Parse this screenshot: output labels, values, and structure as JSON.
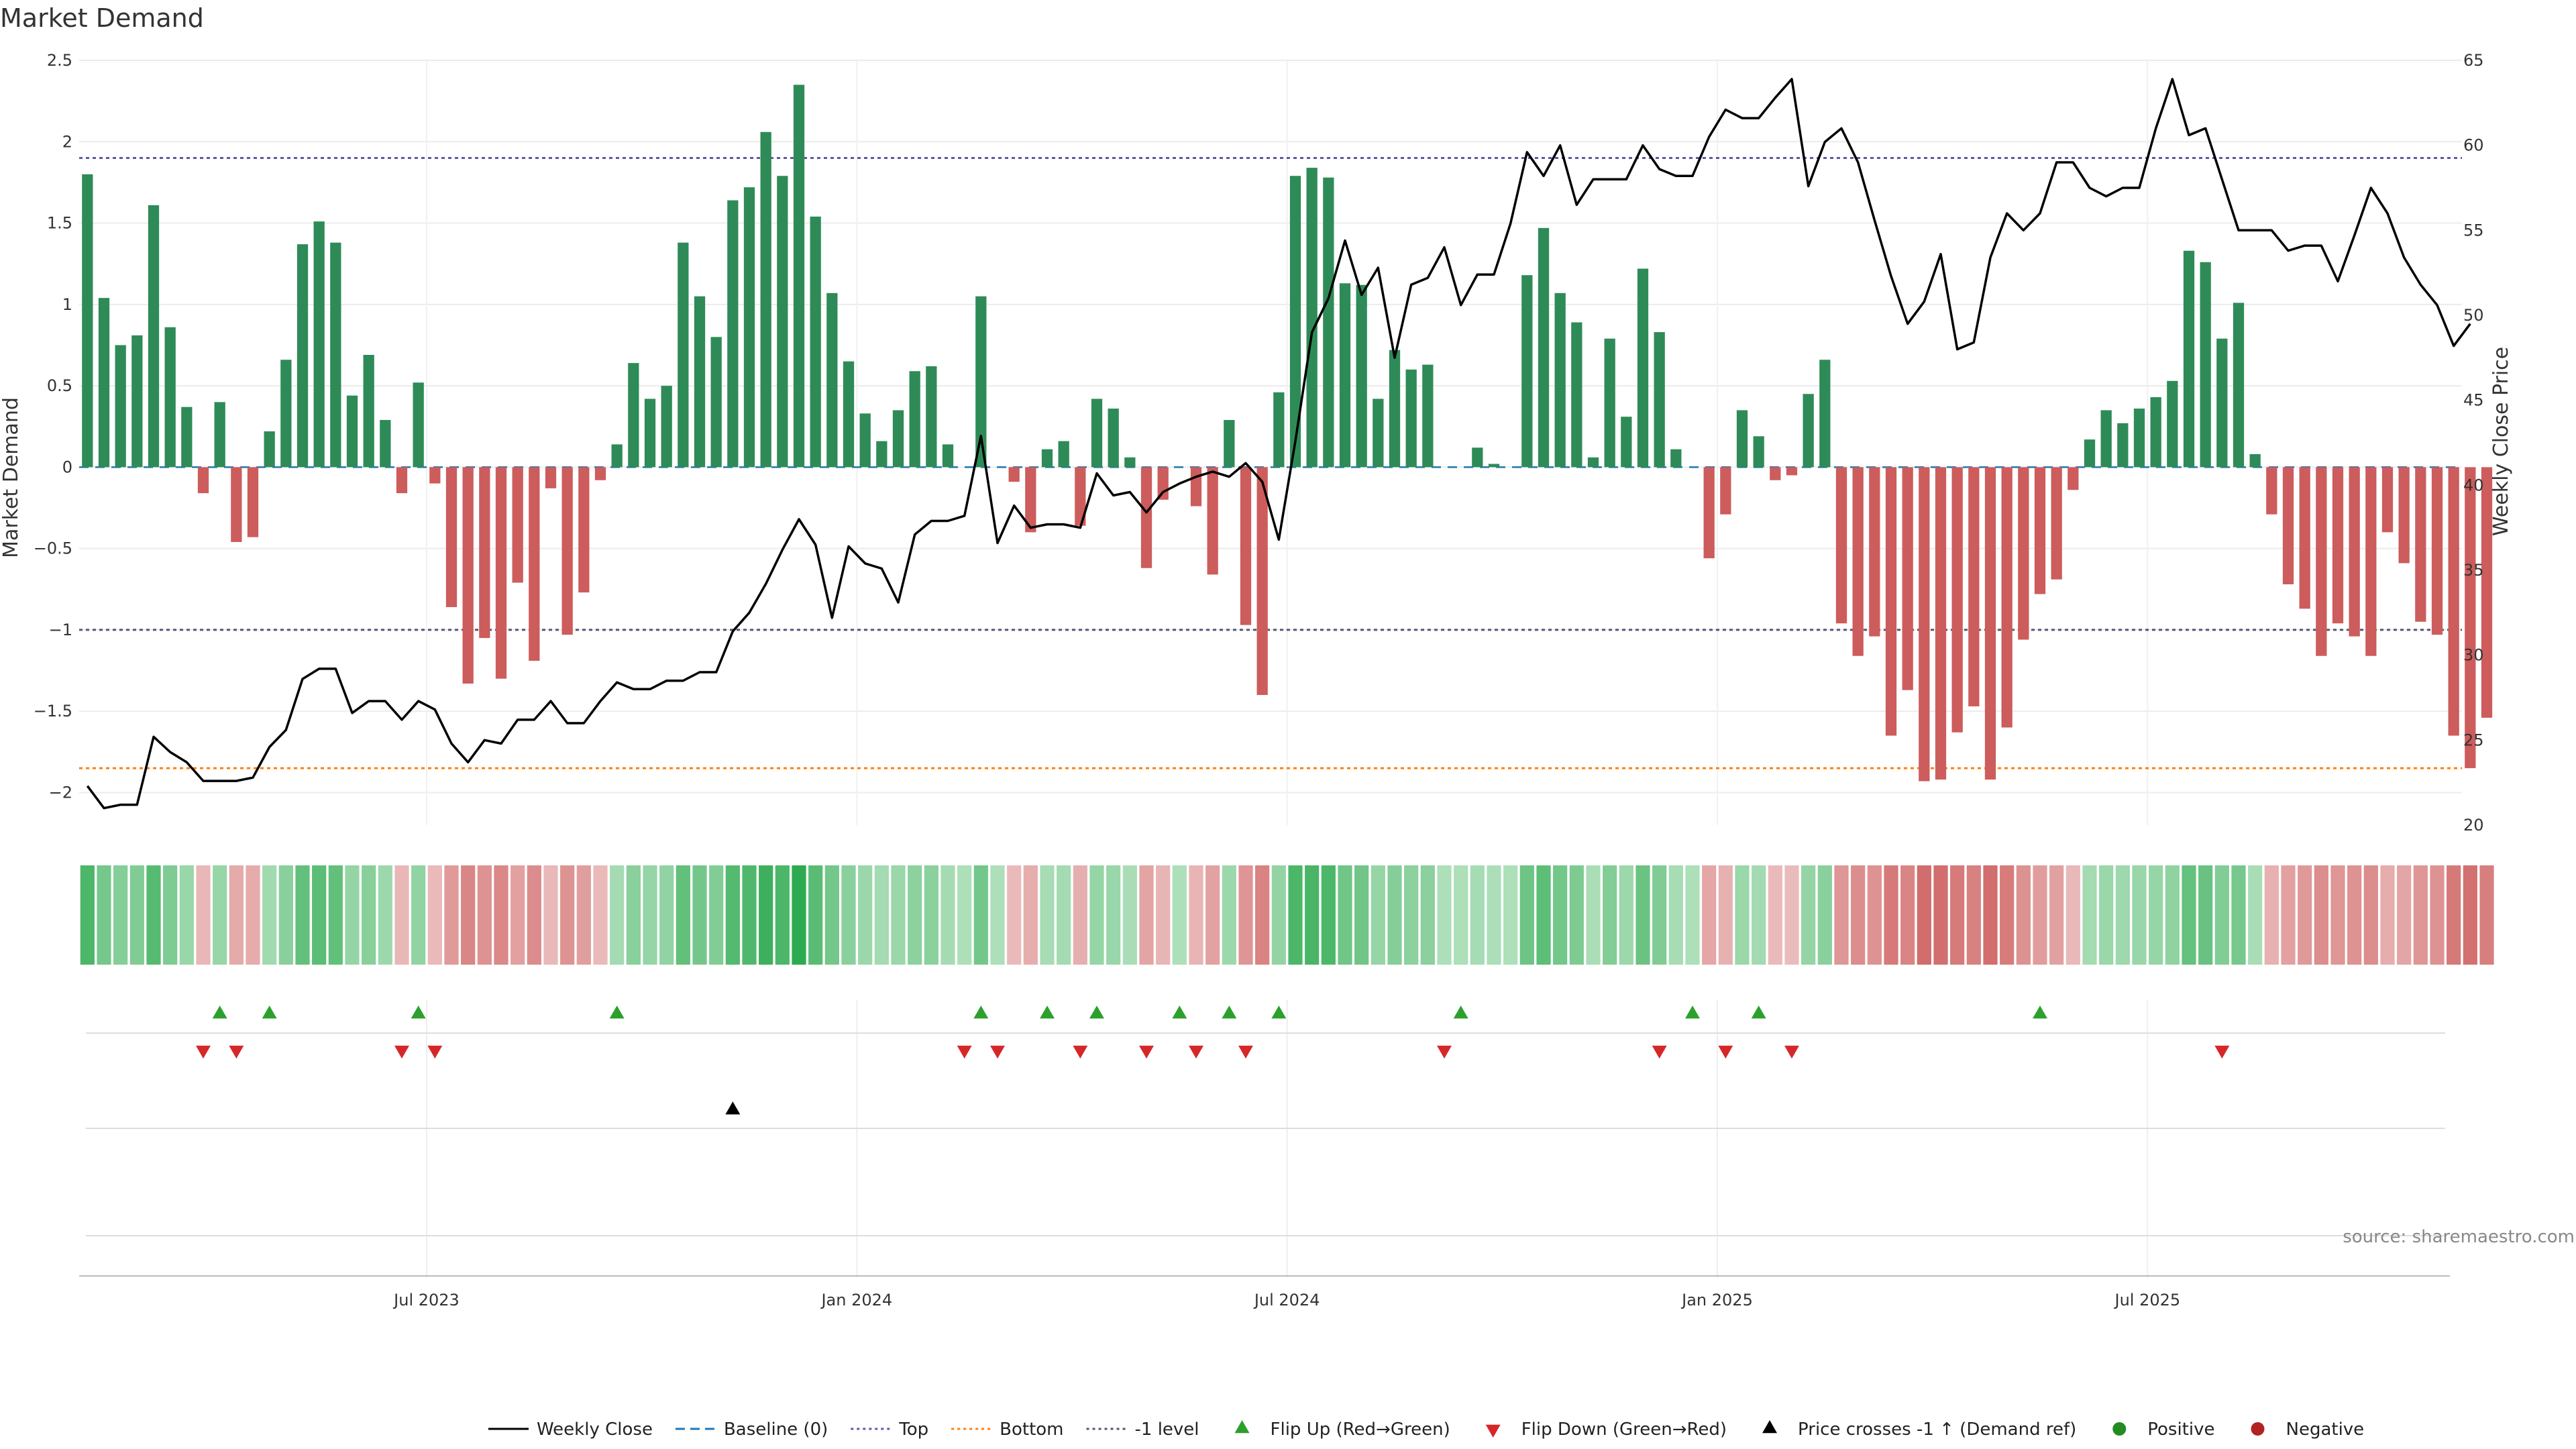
{
  "chart_data": {
    "type": "bar",
    "title": "Market Demand",
    "ylabel": "Market Demand",
    "y2label": "Weekly Close Price",
    "ylim": [
      -2.2,
      2.5
    ],
    "y2lim": [
      20,
      65
    ],
    "yticks": [
      -2,
      -1.5,
      -1,
      -0.5,
      0,
      0.5,
      1,
      1.5,
      2,
      2.5
    ],
    "ytick_labels": [
      "−2",
      "−1.5",
      "−1",
      "−0.5",
      "0",
      "0.5",
      "1",
      "1.5",
      "2",
      "2.5"
    ],
    "y2ticks": [
      20,
      25,
      30,
      35,
      40,
      45,
      50,
      55,
      60,
      65
    ],
    "xticks": [
      {
        "label": "Jul 2023",
        "index": 21
      },
      {
        "label": "Jan 2024",
        "index": 47
      },
      {
        "label": "Jul 2024",
        "index": 73
      },
      {
        "label": "Jan 2025",
        "index": 99
      },
      {
        "label": "Jul 2025",
        "index": 125
      }
    ],
    "weeks": 144,
    "demand": [
      1.8,
      1.04,
      0.75,
      0.81,
      1.61,
      0.86,
      0.37,
      -0.16,
      0.4,
      -0.46,
      -0.43,
      0.22,
      0.66,
      1.37,
      1.51,
      1.38,
      0.44,
      0.69,
      0.29,
      -0.16,
      0.52,
      -0.1,
      -0.86,
      -1.33,
      -1.05,
      -1.3,
      -0.71,
      -1.19,
      -0.13,
      -1.03,
      -0.77,
      -0.08,
      0.14,
      0.64,
      0.42,
      0.5,
      1.38,
      1.05,
      0.8,
      1.64,
      1.72,
      2.06,
      1.79,
      2.35,
      1.54,
      1.07,
      0.65,
      0.33,
      0.16,
      0.35,
      0.59,
      0.62,
      0.14,
      0.0,
      1.05,
      0.0,
      -0.09,
      -0.4,
      0.11,
      0.16,
      -0.36,
      0.42,
      0.36,
      0.06,
      -0.62,
      -0.2,
      0.0,
      -0.24,
      -0.66,
      0.29,
      -0.97,
      -1.4,
      0.46,
      1.79,
      1.84,
      1.78,
      1.13,
      1.12,
      0.42,
      0.72,
      0.6,
      0.63,
      0.0,
      0.0,
      0.12,
      0.02,
      0.0,
      1.18,
      1.47,
      1.07,
      0.89,
      0.06,
      0.79,
      0.31,
      1.22,
      0.83,
      0.11,
      0.0,
      -0.56,
      -0.29,
      0.35,
      0.19,
      -0.08,
      -0.05,
      0.45,
      0.66,
      -0.96,
      -1.16,
      -1.04,
      -1.65,
      -1.37,
      -1.93,
      -1.92,
      -1.63,
      -1.47,
      -1.92,
      -1.6,
      -1.06,
      -0.78,
      -0.69,
      -0.14,
      0.17,
      0.35,
      0.27,
      0.36,
      0.43,
      0.53,
      1.33,
      1.26,
      0.79,
      1.01,
      0.08,
      -0.29,
      -0.72,
      -0.87,
      -1.16,
      -0.96,
      -1.04,
      -1.16,
      -0.4,
      -0.59,
      -0.95,
      -1.03,
      -1.65,
      -1.85,
      -1.54
    ],
    "close": [
      22.3,
      21.0,
      21.2,
      21.2,
      25.2,
      24.3,
      23.7,
      22.6,
      22.6,
      22.6,
      22.8,
      24.6,
      25.6,
      28.6,
      29.2,
      29.2,
      26.6,
      27.3,
      27.3,
      26.2,
      27.3,
      26.8,
      24.8,
      23.7,
      25.0,
      24.8,
      26.2,
      26.2,
      27.3,
      26.0,
      26.0,
      27.3,
      28.4,
      28.0,
      28.0,
      28.5,
      28.5,
      29.0,
      29.0,
      31.4,
      32.5,
      34.2,
      36.2,
      38.0,
      36.5,
      32.2,
      36.4,
      35.4,
      35.1,
      33.1,
      37.1,
      37.9,
      37.9,
      38.2,
      42.9,
      36.6,
      38.8,
      37.5,
      37.7,
      37.7,
      37.5,
      40.7,
      39.4,
      39.6,
      38.4,
      39.6,
      40.1,
      40.5,
      40.8,
      40.5,
      41.3,
      40.2,
      36.8,
      42.6,
      49.0,
      51.0,
      54.4,
      51.2,
      52.8,
      47.5,
      51.8,
      52.2,
      54.0,
      50.6,
      52.4,
      52.4,
      55.4,
      59.6,
      58.2,
      60.0,
      56.5,
      58.0,
      58.0,
      58.0,
      60.0,
      58.6,
      58.2,
      58.2,
      60.5,
      62.1,
      61.6,
      61.6,
      62.8,
      63.9,
      57.6,
      60.2,
      61.0,
      59.0,
      55.6,
      52.3,
      49.5,
      50.8,
      53.6,
      48.0,
      48.4,
      53.4,
      56.0,
      55.0,
      56.0,
      59.0,
      59.0,
      57.5,
      57.0,
      57.5,
      57.5,
      61.0,
      63.9,
      60.6,
      61.0,
      58.0,
      55.0,
      55.0,
      55.0,
      53.8,
      54.1,
      54.1,
      52.0,
      54.7,
      57.5,
      56.0,
      53.4,
      51.8,
      50.6,
      48.2,
      49.5
    ],
    "baseline": 0,
    "top_level": 1.9,
    "bottom_level": -1.85,
    "minus_one_level": -1,
    "flip_up_weeks": [
      8,
      11,
      20,
      32,
      54,
      58,
      61,
      66,
      69,
      72,
      83,
      97,
      101,
      118
    ],
    "flip_down_weeks": [
      7,
      9,
      19,
      21,
      53,
      55,
      60,
      64,
      67,
      70,
      82,
      95,
      99,
      103,
      129
    ],
    "cross_up_weeks": [
      39
    ],
    "colors": {
      "positive": "#2e8b57",
      "negative": "#cd5c5c",
      "close": "#000000",
      "baseline": "#1f77b4",
      "top": "#5a5aa8",
      "bottom": "#ff7f0e",
      "minus_one": "#555577",
      "flip_up": "#2ca02c",
      "flip_down": "#d62728",
      "cross": "#000000",
      "pos_dot": "#228b22",
      "neg_dot": "#b22222"
    },
    "legend": [
      {
        "label": "Weekly Close",
        "kind": "line"
      },
      {
        "label": "Baseline (0)",
        "kind": "dash"
      },
      {
        "label": "Top",
        "kind": "dot"
      },
      {
        "label": "Bottom",
        "kind": "dot"
      },
      {
        "label": "-1 level",
        "kind": "dot"
      },
      {
        "label": "Flip Up (Red→Green)",
        "kind": "up"
      },
      {
        "label": "Flip Down (Green→Red)",
        "kind": "down"
      },
      {
        "label": "Price crosses -1 ↑ (Demand ref)",
        "kind": "cross"
      },
      {
        "label": "Positive",
        "kind": "pos"
      },
      {
        "label": "Negative",
        "kind": "neg"
      }
    ],
    "source": "source: sharemaestro.com"
  }
}
